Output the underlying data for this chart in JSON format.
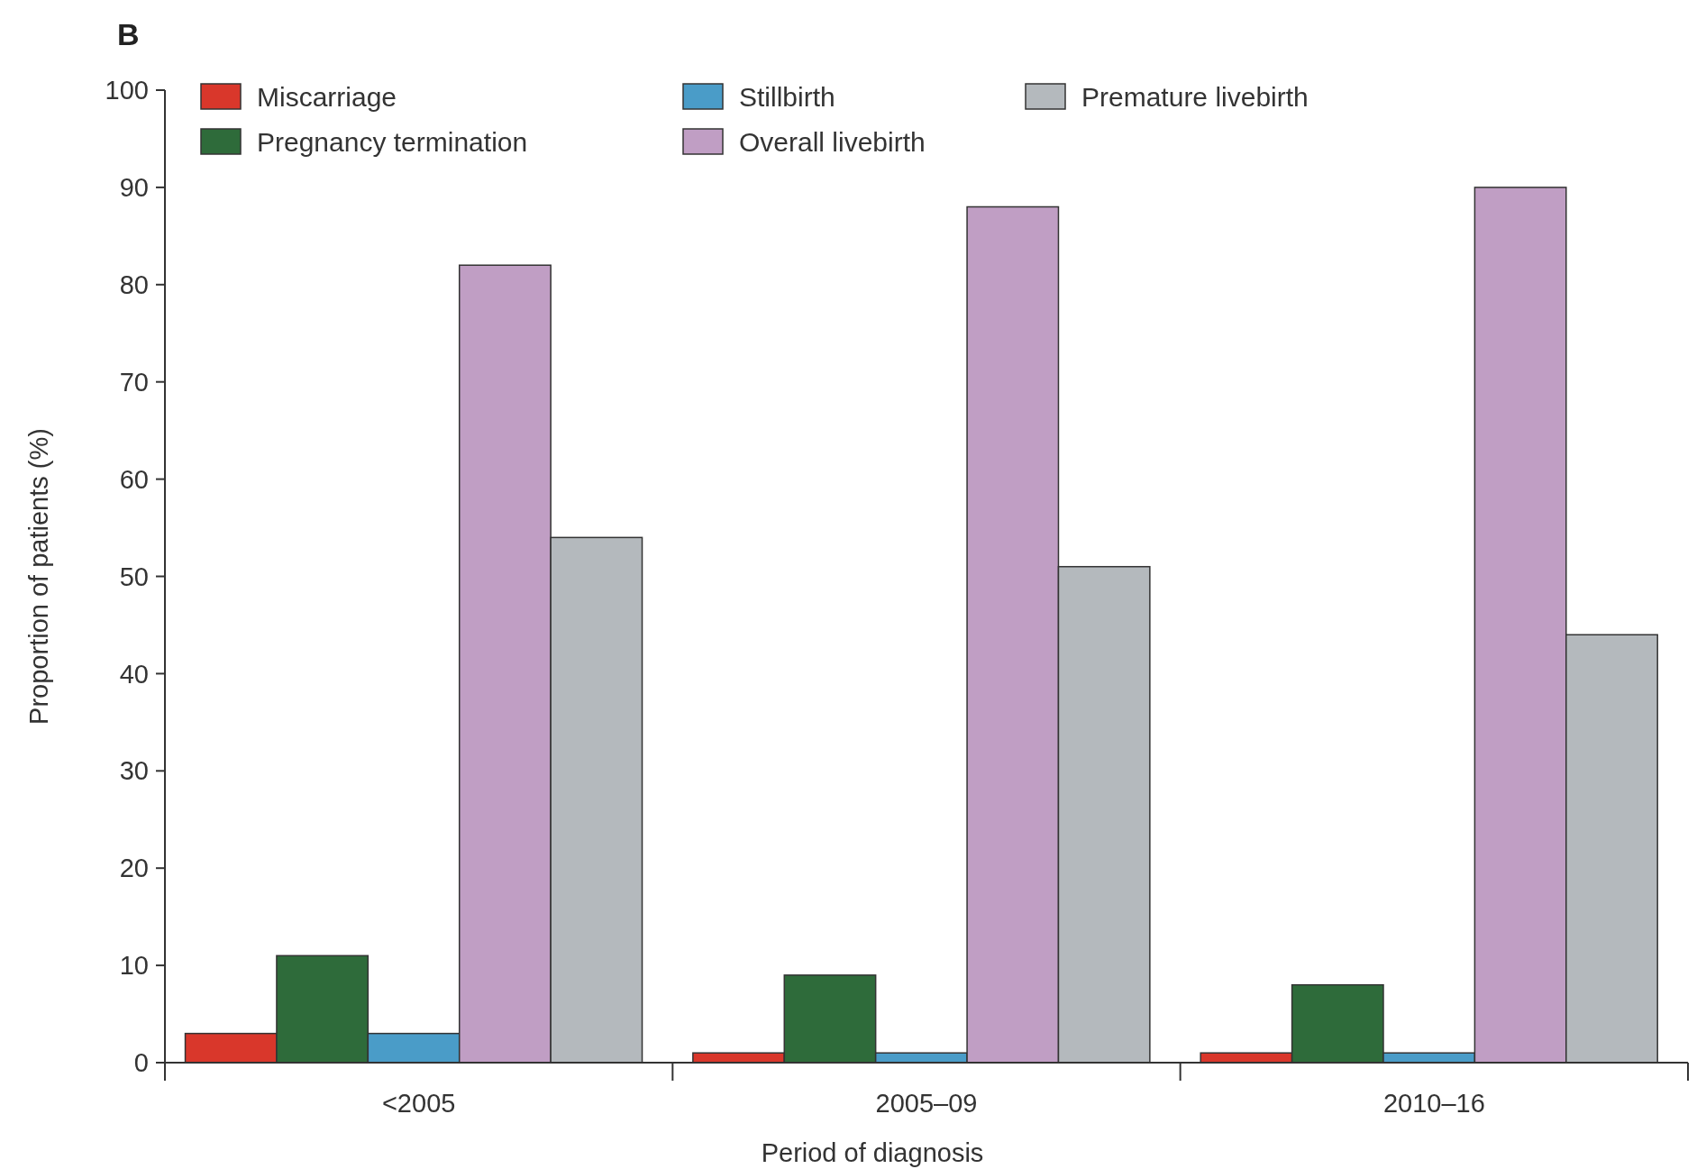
{
  "chart_data": {
    "type": "bar",
    "title": "B",
    "xlabel": "Period of diagnosis",
    "ylabel": "Proportion of patients (%)",
    "categories": [
      "<2005",
      "2005–09",
      "2010–16"
    ],
    "series": [
      {
        "name": "Miscarriage",
        "color": "#d9372b",
        "values": [
          3,
          1,
          1
        ]
      },
      {
        "name": "Pregnancy termination",
        "color": "#2e6b3a",
        "values": [
          11,
          9,
          8
        ]
      },
      {
        "name": "Stillbirth",
        "color": "#4a9cc8",
        "values": [
          3,
          1,
          1
        ]
      },
      {
        "name": "Overall livebirth",
        "color": "#c09ec4",
        "values": [
          82,
          88,
          90
        ]
      },
      {
        "name": "Premature livebirth",
        "color": "#b4b9bd",
        "values": [
          54,
          51,
          44
        ]
      }
    ],
    "ylim": [
      0,
      100
    ],
    "yticks": [
      0,
      10,
      20,
      30,
      40,
      50,
      60,
      70,
      80,
      90,
      100
    ],
    "grid": false,
    "legend": "top"
  }
}
